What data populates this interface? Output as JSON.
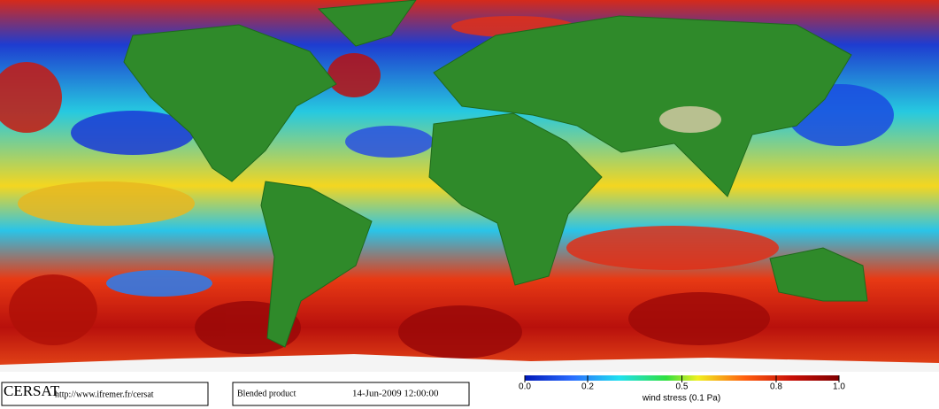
{
  "logo": "CERSAT",
  "url": "http://www.ifremer.fr/cersat",
  "product": "Blended product",
  "datetime": "14-Jun-2009 12:00:00",
  "colorbar": {
    "label": "wind stress (0.1 Pa)",
    "lim": [
      0,
      1
    ],
    "ticks": [
      {
        "value": 0,
        "label": "0.0"
      },
      0.2,
      0.5,
      0.8,
      {
        "value": 1,
        "label": "1.0"
      }
    ]
  }
}
